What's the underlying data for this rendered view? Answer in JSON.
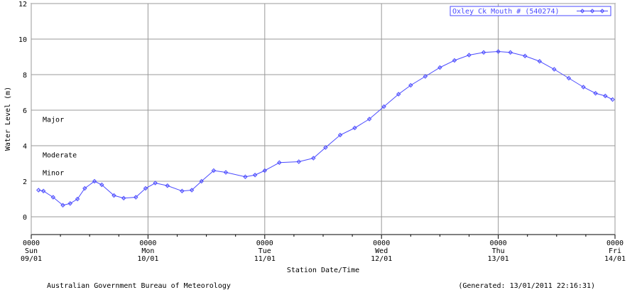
{
  "chart_data": {
    "type": "line",
    "y_label": "Water Level (m)",
    "x_label": "Station Date/Time",
    "xlim": [
      0,
      120
    ],
    "xticks": [
      {
        "value": 0,
        "label": [
          "0000",
          "Sun",
          "09/01"
        ]
      },
      {
        "value": 24,
        "label": [
          "0000",
          "Mon",
          "10/01"
        ]
      },
      {
        "value": 48,
        "label": [
          "0000",
          "Tue",
          "11/01"
        ]
      },
      {
        "value": 72,
        "label": [
          "0000",
          "Wed",
          "12/01"
        ]
      },
      {
        "value": 96,
        "label": [
          "0000",
          "Thu",
          "13/01"
        ]
      },
      {
        "value": 120,
        "label": [
          "0000",
          "Fri",
          "14/01"
        ]
      }
    ],
    "ylim": [
      -1,
      12
    ],
    "yticks": [
      0,
      2,
      4,
      6,
      8,
      10,
      12
    ],
    "grid": true,
    "legend": "top-right",
    "series": [
      {
        "name": "Oxley Ck Mouth # (540274)",
        "color": "#4a4aff",
        "x": [
          1.5,
          2.5,
          4.5,
          6.5,
          8,
          9.5,
          11,
          13,
          14.5,
          17,
          19,
          21.5,
          23.5,
          25.5,
          28,
          31,
          33,
          35,
          37.5,
          40,
          44,
          46,
          48,
          51,
          55,
          58,
          60.5,
          63.5,
          66.5,
          69.5,
          72.5,
          75.5,
          78,
          81,
          84,
          87,
          90,
          93,
          96,
          98.5,
          101.5,
          104.5,
          107.5,
          110.5,
          113.5,
          116,
          118,
          119.5
        ],
        "values": [
          1.5,
          1.45,
          1.1,
          0.65,
          0.75,
          1.0,
          1.6,
          2.0,
          1.8,
          1.2,
          1.05,
          1.1,
          1.6,
          1.9,
          1.75,
          1.45,
          1.5,
          2.0,
          2.6,
          2.5,
          2.25,
          2.35,
          2.6,
          3.05,
          3.1,
          3.3,
          3.9,
          4.6,
          5.0,
          5.5,
          6.2,
          6.9,
          7.4,
          7.9,
          8.4,
          8.8,
          9.1,
          9.25,
          9.3,
          9.25,
          9.05,
          8.75,
          8.3,
          7.8,
          7.3,
          6.95,
          6.8,
          6.6
        ]
      }
    ],
    "annotations": [
      {
        "text": "Major",
        "level": 5.5
      },
      {
        "text": "Moderate",
        "level": 3.5
      },
      {
        "text": "Minor",
        "level": 2.5
      }
    ],
    "footer_left": "Australian Government Bureau of Meteorology",
    "footer_right": "(Generated: 13/01/2011 22:16:31)"
  }
}
